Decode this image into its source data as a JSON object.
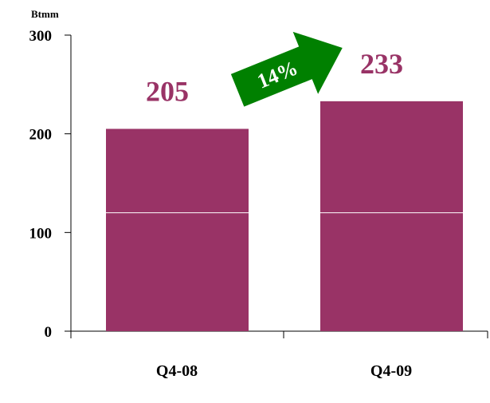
{
  "colors": {
    "bar": "#993366",
    "value_text": "#993366",
    "arrow": "#008000",
    "divider": "#ffffff",
    "axis": "#000000"
  },
  "chart_data": {
    "type": "bar",
    "title": "",
    "xlabel": "",
    "ylabel": "",
    "unit_label": "Btmm",
    "categories": [
      "Q4-08",
      "Q4-09"
    ],
    "values": [
      205,
      233
    ],
    "value_labels": [
      "205",
      "233"
    ],
    "segment_boundary": 120,
    "ylim": [
      0,
      300
    ],
    "yticks": [
      0,
      100,
      200,
      300
    ],
    "ytick_labels": [
      "0",
      "100",
      "200",
      "300"
    ],
    "grid": false,
    "legend": "none",
    "growth_annotation": {
      "label": "14%",
      "icon": "right-arrow-icon"
    }
  }
}
